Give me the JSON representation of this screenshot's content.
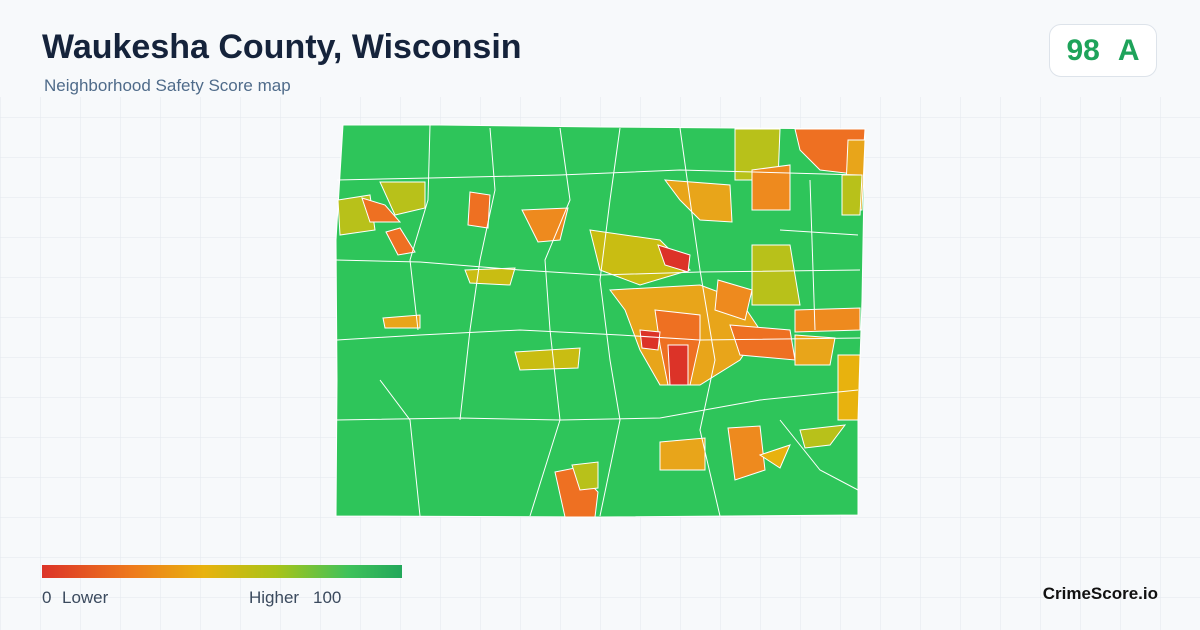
{
  "header": {
    "title": "Waukesha County, Wisconsin",
    "subtitle": "Neighborhood Safety Score map"
  },
  "score_badge": {
    "score": 98,
    "grade": "A"
  },
  "legend": {
    "min": 0,
    "min_label": "Lower",
    "max_label": "Higher",
    "max": 100
  },
  "brand": "CrimeScore.io"
}
